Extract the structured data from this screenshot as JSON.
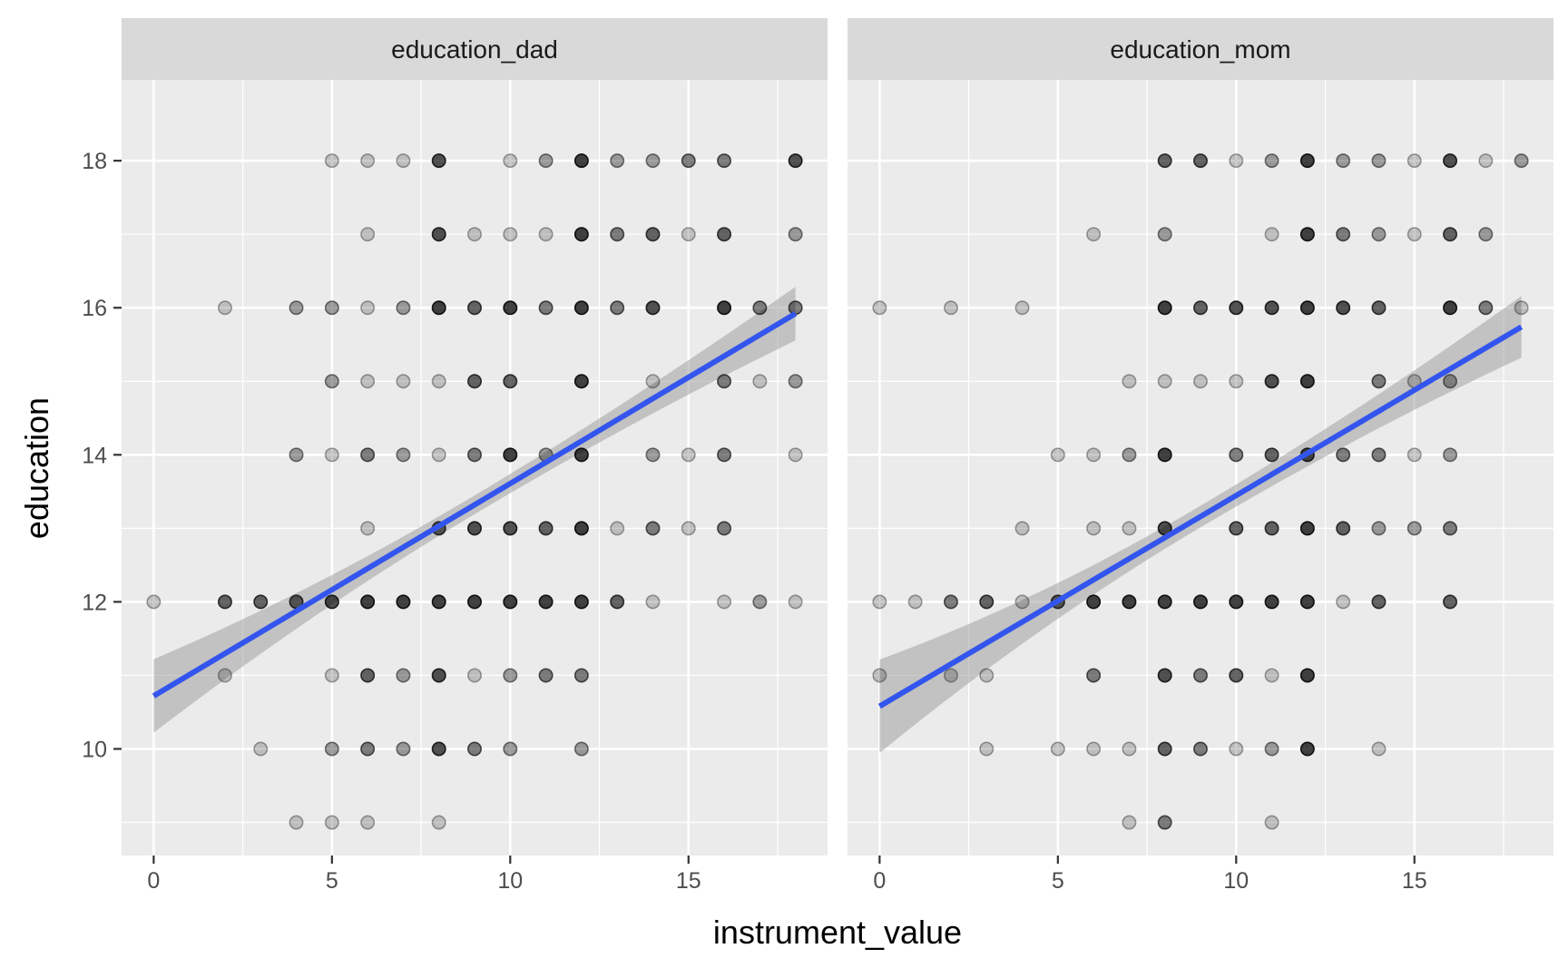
{
  "chart_data": {
    "type": "scatter",
    "facet_by": "instrument",
    "xlabel": "instrument_value",
    "ylabel": "education",
    "xlim": [
      -0.9,
      18.9
    ],
    "ylim": [
      8.55,
      19.1
    ],
    "x_ticks": [
      0,
      5,
      10,
      15
    ],
    "y_ticks": [
      10,
      12,
      14,
      16,
      18
    ],
    "grid": true,
    "point_color": "#000000",
    "point_alpha_note": "low opacity so overlapping points darken",
    "fit": {
      "method": "linear",
      "color": "#3355ee",
      "band_color": "#999999"
    },
    "panels": [
      {
        "name": "education_dad",
        "fit": {
          "x": [
            0,
            18
          ],
          "y": [
            10.72,
            15.92
          ],
          "ci_lo_ends": [
            10.22,
            15.55
          ],
          "ci_hi_ends": [
            11.22,
            16.28
          ]
        },
        "points": [
          {
            "x": 5,
            "y": 18,
            "d": 1
          },
          {
            "x": 6,
            "y": 18,
            "d": 1
          },
          {
            "x": 7,
            "y": 18,
            "d": 1
          },
          {
            "x": 8,
            "y": 18,
            "d": 5
          },
          {
            "x": 10,
            "y": 18,
            "d": 1
          },
          {
            "x": 11,
            "y": 18,
            "d": 2
          },
          {
            "x": 12,
            "y": 18,
            "d": 6
          },
          {
            "x": 13,
            "y": 18,
            "d": 2
          },
          {
            "x": 14,
            "y": 18,
            "d": 2
          },
          {
            "x": 15,
            "y": 18,
            "d": 3
          },
          {
            "x": 16,
            "y": 18,
            "d": 3
          },
          {
            "x": 18,
            "y": 18,
            "d": 5
          },
          {
            "x": 6,
            "y": 17,
            "d": 1
          },
          {
            "x": 8,
            "y": 17,
            "d": 5
          },
          {
            "x": 9,
            "y": 17,
            "d": 1
          },
          {
            "x": 10,
            "y": 17,
            "d": 1
          },
          {
            "x": 11,
            "y": 17,
            "d": 1
          },
          {
            "x": 12,
            "y": 17,
            "d": 6
          },
          {
            "x": 13,
            "y": 17,
            "d": 3
          },
          {
            "x": 14,
            "y": 17,
            "d": 4
          },
          {
            "x": 15,
            "y": 17,
            "d": 1
          },
          {
            "x": 16,
            "y": 17,
            "d": 4
          },
          {
            "x": 18,
            "y": 17,
            "d": 2
          },
          {
            "x": 2,
            "y": 16,
            "d": 1
          },
          {
            "x": 4,
            "y": 16,
            "d": 2
          },
          {
            "x": 5,
            "y": 16,
            "d": 2
          },
          {
            "x": 6,
            "y": 16,
            "d": 1
          },
          {
            "x": 7,
            "y": 16,
            "d": 2
          },
          {
            "x": 8,
            "y": 16,
            "d": 6
          },
          {
            "x": 9,
            "y": 16,
            "d": 4
          },
          {
            "x": 10,
            "y": 16,
            "d": 6
          },
          {
            "x": 11,
            "y": 16,
            "d": 3
          },
          {
            "x": 12,
            "y": 16,
            "d": 6
          },
          {
            "x": 13,
            "y": 16,
            "d": 3
          },
          {
            "x": 14,
            "y": 16,
            "d": 5
          },
          {
            "x": 16,
            "y": 16,
            "d": 6
          },
          {
            "x": 17,
            "y": 16,
            "d": 3
          },
          {
            "x": 18,
            "y": 16,
            "d": 3
          },
          {
            "x": 5,
            "y": 15,
            "d": 2
          },
          {
            "x": 6,
            "y": 15,
            "d": 1
          },
          {
            "x": 7,
            "y": 15,
            "d": 1
          },
          {
            "x": 8,
            "y": 15,
            "d": 1
          },
          {
            "x": 9,
            "y": 15,
            "d": 4
          },
          {
            "x": 10,
            "y": 15,
            "d": 4
          },
          {
            "x": 12,
            "y": 15,
            "d": 6
          },
          {
            "x": 14,
            "y": 15,
            "d": 1
          },
          {
            "x": 16,
            "y": 15,
            "d": 3
          },
          {
            "x": 17,
            "y": 15,
            "d": 1
          },
          {
            "x": 18,
            "y": 15,
            "d": 2
          },
          {
            "x": 4,
            "y": 14,
            "d": 2
          },
          {
            "x": 5,
            "y": 14,
            "d": 1
          },
          {
            "x": 6,
            "y": 14,
            "d": 3
          },
          {
            "x": 7,
            "y": 14,
            "d": 2
          },
          {
            "x": 8,
            "y": 14,
            "d": 1
          },
          {
            "x": 9,
            "y": 14,
            "d": 3
          },
          {
            "x": 10,
            "y": 14,
            "d": 6
          },
          {
            "x": 11,
            "y": 14,
            "d": 2
          },
          {
            "x": 12,
            "y": 14,
            "d": 6
          },
          {
            "x": 14,
            "y": 14,
            "d": 2
          },
          {
            "x": 15,
            "y": 14,
            "d": 1
          },
          {
            "x": 16,
            "y": 14,
            "d": 3
          },
          {
            "x": 18,
            "y": 14,
            "d": 1
          },
          {
            "x": 6,
            "y": 13,
            "d": 1
          },
          {
            "x": 8,
            "y": 13,
            "d": 4
          },
          {
            "x": 9,
            "y": 13,
            "d": 5
          },
          {
            "x": 10,
            "y": 13,
            "d": 5
          },
          {
            "x": 11,
            "y": 13,
            "d": 4
          },
          {
            "x": 12,
            "y": 13,
            "d": 6
          },
          {
            "x": 13,
            "y": 13,
            "d": 1
          },
          {
            "x": 14,
            "y": 13,
            "d": 3
          },
          {
            "x": 15,
            "y": 13,
            "d": 1
          },
          {
            "x": 16,
            "y": 13,
            "d": 3
          },
          {
            "x": 0,
            "y": 12,
            "d": 1
          },
          {
            "x": 2,
            "y": 12,
            "d": 4
          },
          {
            "x": 3,
            "y": 12,
            "d": 4
          },
          {
            "x": 4,
            "y": 12,
            "d": 4
          },
          {
            "x": 5,
            "y": 12,
            "d": 5
          },
          {
            "x": 6,
            "y": 12,
            "d": 6
          },
          {
            "x": 7,
            "y": 12,
            "d": 6
          },
          {
            "x": 8,
            "y": 12,
            "d": 6
          },
          {
            "x": 9,
            "y": 12,
            "d": 6
          },
          {
            "x": 10,
            "y": 12,
            "d": 6
          },
          {
            "x": 11,
            "y": 12,
            "d": 6
          },
          {
            "x": 12,
            "y": 12,
            "d": 6
          },
          {
            "x": 13,
            "y": 12,
            "d": 4
          },
          {
            "x": 14,
            "y": 12,
            "d": 1
          },
          {
            "x": 16,
            "y": 12,
            "d": 1
          },
          {
            "x": 17,
            "y": 12,
            "d": 2
          },
          {
            "x": 18,
            "y": 12,
            "d": 1
          },
          {
            "x": 2,
            "y": 11,
            "d": 1
          },
          {
            "x": 5,
            "y": 11,
            "d": 1
          },
          {
            "x": 6,
            "y": 11,
            "d": 4
          },
          {
            "x": 7,
            "y": 11,
            "d": 2
          },
          {
            "x": 8,
            "y": 11,
            "d": 5
          },
          {
            "x": 9,
            "y": 11,
            "d": 1
          },
          {
            "x": 10,
            "y": 11,
            "d": 2
          },
          {
            "x": 11,
            "y": 11,
            "d": 3
          },
          {
            "x": 12,
            "y": 11,
            "d": 3
          },
          {
            "x": 3,
            "y": 10,
            "d": 1
          },
          {
            "x": 5,
            "y": 10,
            "d": 2
          },
          {
            "x": 6,
            "y": 10,
            "d": 3
          },
          {
            "x": 7,
            "y": 10,
            "d": 2
          },
          {
            "x": 8,
            "y": 10,
            "d": 5
          },
          {
            "x": 9,
            "y": 10,
            "d": 3
          },
          {
            "x": 10,
            "y": 10,
            "d": 2
          },
          {
            "x": 12,
            "y": 10,
            "d": 2
          },
          {
            "x": 4,
            "y": 9,
            "d": 1
          },
          {
            "x": 5,
            "y": 9,
            "d": 1
          },
          {
            "x": 6,
            "y": 9,
            "d": 1
          },
          {
            "x": 8,
            "y": 9,
            "d": 1
          }
        ]
      },
      {
        "name": "education_mom",
        "fit": {
          "x": [
            0,
            18
          ],
          "y": [
            10.58,
            15.74
          ],
          "ci_lo_ends": [
            9.95,
            15.32
          ],
          "ci_hi_ends": [
            11.22,
            16.16
          ]
        },
        "points": [
          {
            "x": 8,
            "y": 18,
            "d": 4
          },
          {
            "x": 9,
            "y": 18,
            "d": 4
          },
          {
            "x": 10,
            "y": 18,
            "d": 1
          },
          {
            "x": 11,
            "y": 18,
            "d": 2
          },
          {
            "x": 12,
            "y": 18,
            "d": 6
          },
          {
            "x": 13,
            "y": 18,
            "d": 2
          },
          {
            "x": 14,
            "y": 18,
            "d": 2
          },
          {
            "x": 15,
            "y": 18,
            "d": 1
          },
          {
            "x": 16,
            "y": 18,
            "d": 5
          },
          {
            "x": 17,
            "y": 18,
            "d": 1
          },
          {
            "x": 18,
            "y": 18,
            "d": 2
          },
          {
            "x": 6,
            "y": 17,
            "d": 1
          },
          {
            "x": 8,
            "y": 17,
            "d": 2
          },
          {
            "x": 11,
            "y": 17,
            "d": 1
          },
          {
            "x": 12,
            "y": 17,
            "d": 6
          },
          {
            "x": 13,
            "y": 17,
            "d": 3
          },
          {
            "x": 14,
            "y": 17,
            "d": 2
          },
          {
            "x": 15,
            "y": 17,
            "d": 1
          },
          {
            "x": 16,
            "y": 17,
            "d": 4
          },
          {
            "x": 17,
            "y": 17,
            "d": 2
          },
          {
            "x": 0,
            "y": 16,
            "d": 1
          },
          {
            "x": 2,
            "y": 16,
            "d": 1
          },
          {
            "x": 4,
            "y": 16,
            "d": 1
          },
          {
            "x": 8,
            "y": 16,
            "d": 6
          },
          {
            "x": 9,
            "y": 16,
            "d": 4
          },
          {
            "x": 10,
            "y": 16,
            "d": 5
          },
          {
            "x": 11,
            "y": 16,
            "d": 5
          },
          {
            "x": 12,
            "y": 16,
            "d": 6
          },
          {
            "x": 13,
            "y": 16,
            "d": 5
          },
          {
            "x": 14,
            "y": 16,
            "d": 4
          },
          {
            "x": 16,
            "y": 16,
            "d": 6
          },
          {
            "x": 17,
            "y": 16,
            "d": 3
          },
          {
            "x": 18,
            "y": 16,
            "d": 1
          },
          {
            "x": 7,
            "y": 15,
            "d": 1
          },
          {
            "x": 8,
            "y": 15,
            "d": 1
          },
          {
            "x": 9,
            "y": 15,
            "d": 1
          },
          {
            "x": 10,
            "y": 15,
            "d": 1
          },
          {
            "x": 11,
            "y": 15,
            "d": 5
          },
          {
            "x": 12,
            "y": 15,
            "d": 6
          },
          {
            "x": 14,
            "y": 15,
            "d": 3
          },
          {
            "x": 15,
            "y": 15,
            "d": 1
          },
          {
            "x": 16,
            "y": 15,
            "d": 2
          },
          {
            "x": 5,
            "y": 14,
            "d": 1
          },
          {
            "x": 6,
            "y": 14,
            "d": 1
          },
          {
            "x": 7,
            "y": 14,
            "d": 2
          },
          {
            "x": 8,
            "y": 14,
            "d": 6
          },
          {
            "x": 10,
            "y": 14,
            "d": 3
          },
          {
            "x": 11,
            "y": 14,
            "d": 4
          },
          {
            "x": 12,
            "y": 14,
            "d": 5
          },
          {
            "x": 13,
            "y": 14,
            "d": 3
          },
          {
            "x": 14,
            "y": 14,
            "d": 3
          },
          {
            "x": 15,
            "y": 14,
            "d": 1
          },
          {
            "x": 16,
            "y": 14,
            "d": 2
          },
          {
            "x": 4,
            "y": 13,
            "d": 1
          },
          {
            "x": 6,
            "y": 13,
            "d": 1
          },
          {
            "x": 7,
            "y": 13,
            "d": 1
          },
          {
            "x": 8,
            "y": 13,
            "d": 5
          },
          {
            "x": 10,
            "y": 13,
            "d": 4
          },
          {
            "x": 11,
            "y": 13,
            "d": 4
          },
          {
            "x": 12,
            "y": 13,
            "d": 6
          },
          {
            "x": 13,
            "y": 13,
            "d": 4
          },
          {
            "x": 14,
            "y": 13,
            "d": 2
          },
          {
            "x": 15,
            "y": 13,
            "d": 2
          },
          {
            "x": 16,
            "y": 13,
            "d": 3
          },
          {
            "x": 0,
            "y": 12,
            "d": 1
          },
          {
            "x": 1,
            "y": 12,
            "d": 1
          },
          {
            "x": 2,
            "y": 12,
            "d": 3
          },
          {
            "x": 3,
            "y": 12,
            "d": 4
          },
          {
            "x": 4,
            "y": 12,
            "d": 1
          },
          {
            "x": 5,
            "y": 12,
            "d": 4
          },
          {
            "x": 6,
            "y": 12,
            "d": 6
          },
          {
            "x": 7,
            "y": 12,
            "d": 6
          },
          {
            "x": 8,
            "y": 12,
            "d": 6
          },
          {
            "x": 9,
            "y": 12,
            "d": 6
          },
          {
            "x": 10,
            "y": 12,
            "d": 6
          },
          {
            "x": 11,
            "y": 12,
            "d": 6
          },
          {
            "x": 12,
            "y": 12,
            "d": 6
          },
          {
            "x": 13,
            "y": 12,
            "d": 1
          },
          {
            "x": 14,
            "y": 12,
            "d": 4
          },
          {
            "x": 16,
            "y": 12,
            "d": 4
          },
          {
            "x": 0,
            "y": 11,
            "d": 1
          },
          {
            "x": 2,
            "y": 11,
            "d": 1
          },
          {
            "x": 3,
            "y": 11,
            "d": 1
          },
          {
            "x": 6,
            "y": 11,
            "d": 3
          },
          {
            "x": 8,
            "y": 11,
            "d": 5
          },
          {
            "x": 9,
            "y": 11,
            "d": 3
          },
          {
            "x": 10,
            "y": 11,
            "d": 4
          },
          {
            "x": 11,
            "y": 11,
            "d": 1
          },
          {
            "x": 12,
            "y": 11,
            "d": 6
          },
          {
            "x": 3,
            "y": 10,
            "d": 1
          },
          {
            "x": 5,
            "y": 10,
            "d": 1
          },
          {
            "x": 6,
            "y": 10,
            "d": 1
          },
          {
            "x": 7,
            "y": 10,
            "d": 1
          },
          {
            "x": 8,
            "y": 10,
            "d": 4
          },
          {
            "x": 9,
            "y": 10,
            "d": 3
          },
          {
            "x": 10,
            "y": 10,
            "d": 1
          },
          {
            "x": 11,
            "y": 10,
            "d": 2
          },
          {
            "x": 12,
            "y": 10,
            "d": 6
          },
          {
            "x": 14,
            "y": 10,
            "d": 1
          },
          {
            "x": 7,
            "y": 9,
            "d": 1
          },
          {
            "x": 8,
            "y": 9,
            "d": 3
          },
          {
            "x": 11,
            "y": 9,
            "d": 1
          }
        ]
      }
    ]
  }
}
